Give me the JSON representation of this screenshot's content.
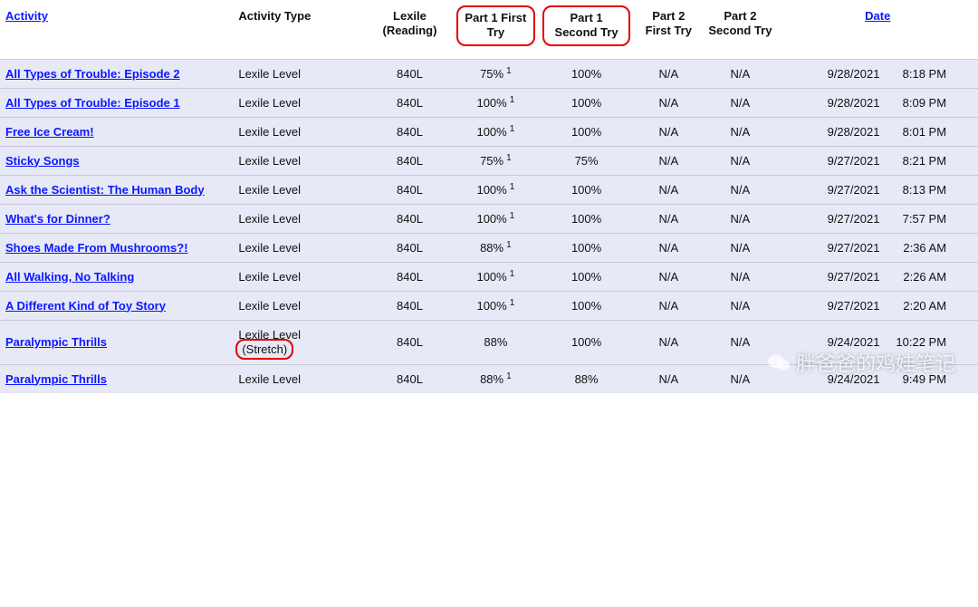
{
  "colors": {
    "row_bg": "#e7e9f7",
    "link": "#0b18ff",
    "border": "#c9c9d9",
    "highlight": "#e40000",
    "text": "#111111"
  },
  "headers": {
    "activity": "Activity",
    "activity_type": "Activity Type",
    "lexile": "Lexile (Reading)",
    "p1_first": "Part 1 First Try",
    "p1_second": "Part 1 Second Try",
    "p2_first": "Part 2 First Try",
    "p2_second": "Part 2 Second Try",
    "date": "Date"
  },
  "highlight_headers": [
    "p1_first",
    "p1_second"
  ],
  "watermark_text": "胖爸爸的鸡娃笔记",
  "rows": [
    {
      "activity": "All Types of Trouble: Episode 2",
      "type": "Lexile Level",
      "type_highlight": false,
      "lexile": "840L",
      "p1f": "75%",
      "p1f_sup": "1",
      "p1s": "100%",
      "p2f": "N/A",
      "p2s": "N/A",
      "date1": "9/28/2021",
      "date2": "8:18 PM"
    },
    {
      "activity": "All Types of Trouble: Episode 1",
      "type": "Lexile Level",
      "type_highlight": false,
      "lexile": "840L",
      "p1f": "100%",
      "p1f_sup": "1",
      "p1s": "100%",
      "p2f": "N/A",
      "p2s": "N/A",
      "date1": "9/28/2021",
      "date2": "8:09 PM"
    },
    {
      "activity": "Free Ice Cream!",
      "type": "Lexile Level",
      "type_highlight": false,
      "lexile": "840L",
      "p1f": "100%",
      "p1f_sup": "1",
      "p1s": "100%",
      "p2f": "N/A",
      "p2s": "N/A",
      "date1": "9/28/2021",
      "date2": "8:01 PM"
    },
    {
      "activity": "Sticky Songs",
      "type": "Lexile Level",
      "type_highlight": false,
      "lexile": "840L",
      "p1f": "75%",
      "p1f_sup": "1",
      "p1s": "75%",
      "p2f": "N/A",
      "p2s": "N/A",
      "date1": "9/27/2021",
      "date2": "8:21 PM"
    },
    {
      "activity": "Ask the Scientist: The Human Body",
      "type": "Lexile Level",
      "type_highlight": false,
      "lexile": "840L",
      "p1f": "100%",
      "p1f_sup": "1",
      "p1s": "100%",
      "p2f": "N/A",
      "p2s": "N/A",
      "date1": "9/27/2021",
      "date2": "8:13 PM"
    },
    {
      "activity": "What's for Dinner?",
      "type": "Lexile Level",
      "type_highlight": false,
      "lexile": "840L",
      "p1f": "100%",
      "p1f_sup": "1",
      "p1s": "100%",
      "p2f": "N/A",
      "p2s": "N/A",
      "date1": "9/27/2021",
      "date2": "7:57 PM"
    },
    {
      "activity": "Shoes Made From Mushrooms?!",
      "type": "Lexile Level",
      "type_highlight": false,
      "lexile": "840L",
      "p1f": "88%",
      "p1f_sup": "1",
      "p1s": "100%",
      "p2f": "N/A",
      "p2s": "N/A",
      "date1": "9/27/2021",
      "date2": "2:36 AM"
    },
    {
      "activity": "All Walking, No Talking",
      "type": "Lexile Level",
      "type_highlight": false,
      "lexile": "840L",
      "p1f": "100%",
      "p1f_sup": "1",
      "p1s": "100%",
      "p2f": "N/A",
      "p2s": "N/A",
      "date1": "9/27/2021",
      "date2": "2:26 AM"
    },
    {
      "activity": "A Different Kind of Toy Story",
      "type": "Lexile Level",
      "type_highlight": false,
      "lexile": "840L",
      "p1f": "100%",
      "p1f_sup": "1",
      "p1s": "100%",
      "p2f": "N/A",
      "p2s": "N/A",
      "date1": "9/27/2021",
      "date2": "2:20 AM"
    },
    {
      "activity": "Paralympic Thrills",
      "type": "Lexile Level (Stretch)",
      "type_highlight": true,
      "lexile": "840L",
      "p1f": "88%",
      "p1f_sup": "",
      "p1s": "100%",
      "p2f": "N/A",
      "p2s": "N/A",
      "date1": "9/24/2021",
      "date2": "10:22 PM"
    },
    {
      "activity": "Paralympic Thrills",
      "type": "Lexile Level",
      "type_highlight": false,
      "lexile": "840L",
      "p1f": "88%",
      "p1f_sup": "1",
      "p1s": "88%",
      "p2f": "N/A",
      "p2s": "N/A",
      "date1": "9/24/2021",
      "date2": "9:49 PM"
    }
  ]
}
